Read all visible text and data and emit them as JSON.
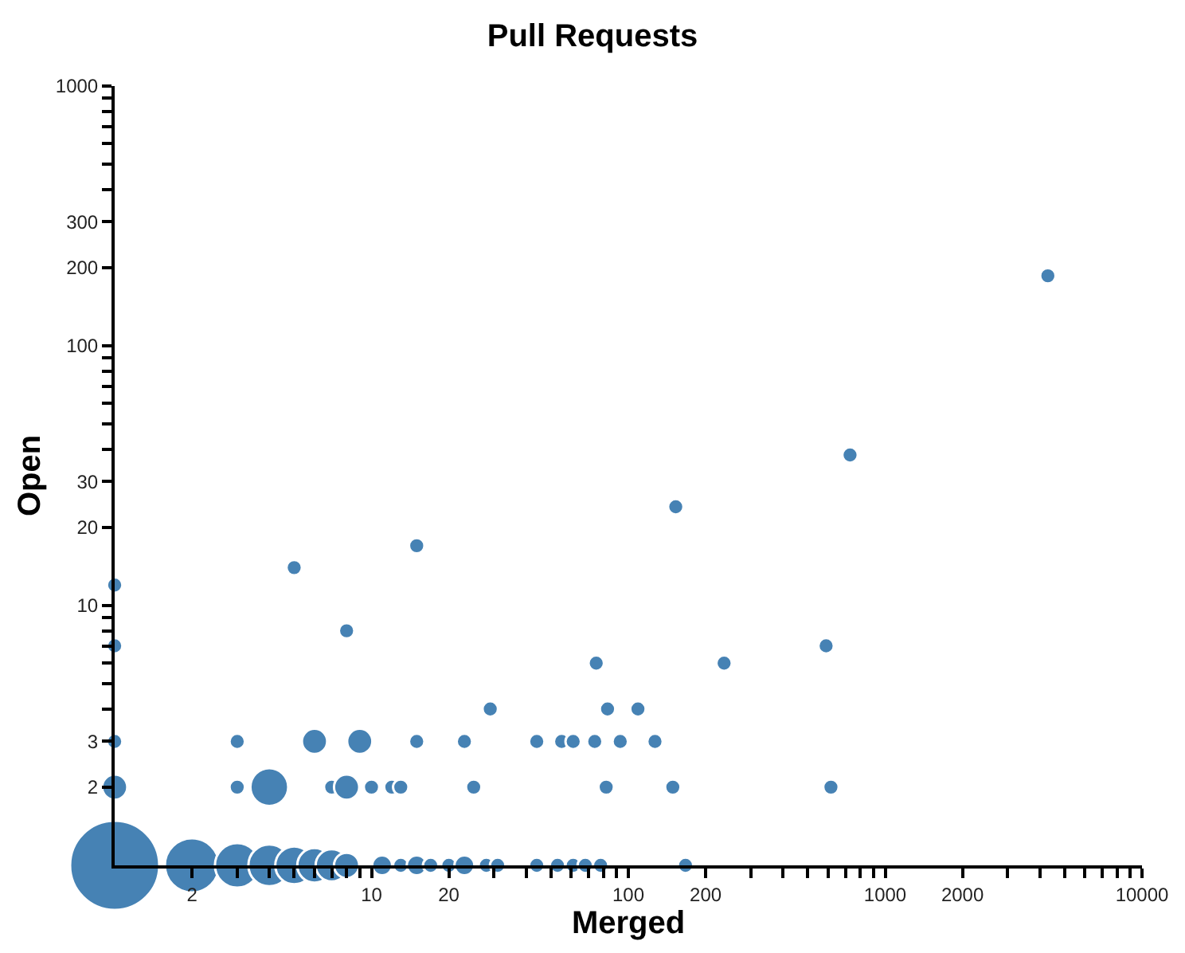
{
  "chart_data": {
    "type": "bubble",
    "title": "Pull Requests",
    "xlabel": "Merged",
    "ylabel": "Open",
    "log": "xy",
    "grid": false,
    "legend": false,
    "marker": "circle",
    "relative": false,
    "xlim": [
      1,
      10000
    ],
    "ylim": [
      1,
      1000
    ],
    "xticks": [
      2,
      {
        "value": 3,
        "label": null
      },
      {
        "value": 4,
        "label": null
      },
      {
        "value": 5,
        "label": null
      },
      {
        "value": 6,
        "label": null
      },
      {
        "value": 7,
        "label": null
      },
      {
        "value": 8,
        "label": null
      },
      {
        "value": 9,
        "label": null
      },
      10,
      20,
      {
        "value": 30,
        "label": null
      },
      {
        "value": 40,
        "label": null
      },
      {
        "value": 50,
        "label": null
      },
      {
        "value": 60,
        "label": null
      },
      {
        "value": 70,
        "label": null
      },
      {
        "value": 80,
        "label": null
      },
      {
        "value": 90,
        "label": null
      },
      100,
      200,
      {
        "value": 300,
        "label": null
      },
      {
        "value": 400,
        "label": null
      },
      {
        "value": 500,
        "label": null
      },
      {
        "value": 600,
        "label": null
      },
      {
        "value": 700,
        "label": null
      },
      {
        "value": 800,
        "label": null
      },
      {
        "value": 900,
        "label": null
      },
      1000,
      2000,
      {
        "value": 3000,
        "label": null
      },
      {
        "value": 4000,
        "label": null
      },
      {
        "value": 5000,
        "label": null
      },
      {
        "value": 6000,
        "label": null
      },
      {
        "value": 7000,
        "label": null
      },
      {
        "value": 8000,
        "label": null
      },
      {
        "value": 9000,
        "label": null
      },
      10000
    ],
    "yticks": [
      2,
      3,
      {
        "value": 4,
        "label": null
      },
      {
        "value": 5,
        "label": null
      },
      {
        "value": 6,
        "label": null
      },
      {
        "value": 7,
        "label": null
      },
      {
        "value": 8,
        "label": null
      },
      {
        "value": 9,
        "label": null
      },
      10,
      20,
      30,
      {
        "value": 40,
        "label": null
      },
      {
        "value": 50,
        "label": null
      },
      {
        "value": 60,
        "label": null
      },
      {
        "value": 70,
        "label": null
      },
      {
        "value": 80,
        "label": null
      },
      {
        "value": 90,
        "label": null
      },
      100,
      200,
      300,
      {
        "value": 400,
        "label": null
      },
      {
        "value": 500,
        "label": null
      },
      {
        "value": 600,
        "label": null
      },
      {
        "value": 700,
        "label": null
      },
      {
        "value": 800,
        "label": null
      },
      {
        "value": 900,
        "label": null
      },
      1000
    ],
    "series": [
      {
        "color": "#4682b4",
        "x": [
          1,
          2,
          3,
          4,
          5,
          6,
          7,
          8,
          11,
          13,
          15,
          17,
          20,
          23,
          28,
          31,
          44,
          53,
          61,
          68,
          78,
          167,
          1,
          1,
          1,
          1,
          3,
          4,
          7,
          8,
          10,
          12,
          13,
          25,
          82,
          149,
          615,
          3,
          6,
          9,
          15,
          23,
          44,
          55,
          61,
          74,
          93,
          127,
          29,
          83,
          109,
          75,
          236,
          589,
          8,
          5,
          15,
          153,
          730,
          4300
        ],
        "values": [
          1,
          1,
          1,
          1,
          1,
          1,
          1,
          1,
          1,
          1,
          1,
          1,
          1,
          1,
          1,
          1,
          1,
          1,
          1,
          1,
          1,
          1,
          2,
          3,
          7,
          12,
          2,
          2,
          2,
          2,
          2,
          2,
          2,
          2,
          2,
          2,
          2,
          3,
          3,
          3,
          3,
          3,
          3,
          3,
          3,
          3,
          3,
          3,
          4,
          4,
          4,
          6,
          6,
          7,
          8,
          14,
          17,
          24,
          38,
          186
        ],
        "sizes": [
          1,
          0.37,
          0.25,
          0.22,
          0.18,
          0.15,
          0.13,
          0.08,
          0.05,
          0.03,
          0.05,
          0.03,
          0.03,
          0.05,
          0.03,
          0.03,
          0.03,
          0.03,
          0.03,
          0.03,
          0.03,
          0.03,
          0.08,
          0.03,
          0.03,
          0.03,
          0.03,
          0.18,
          0.03,
          0.08,
          0.03,
          0.03,
          0.03,
          0.03,
          0.03,
          0.03,
          0.03,
          0.03,
          0.08,
          0.08,
          0.03,
          0.03,
          0.03,
          0.03,
          0.03,
          0.03,
          0.03,
          0.03,
          0.03,
          0.03,
          0.03,
          0.03,
          0.03,
          0.03,
          0.03,
          0.03,
          0.03,
          0.03,
          0.03,
          0.03
        ]
      }
    ]
  }
}
